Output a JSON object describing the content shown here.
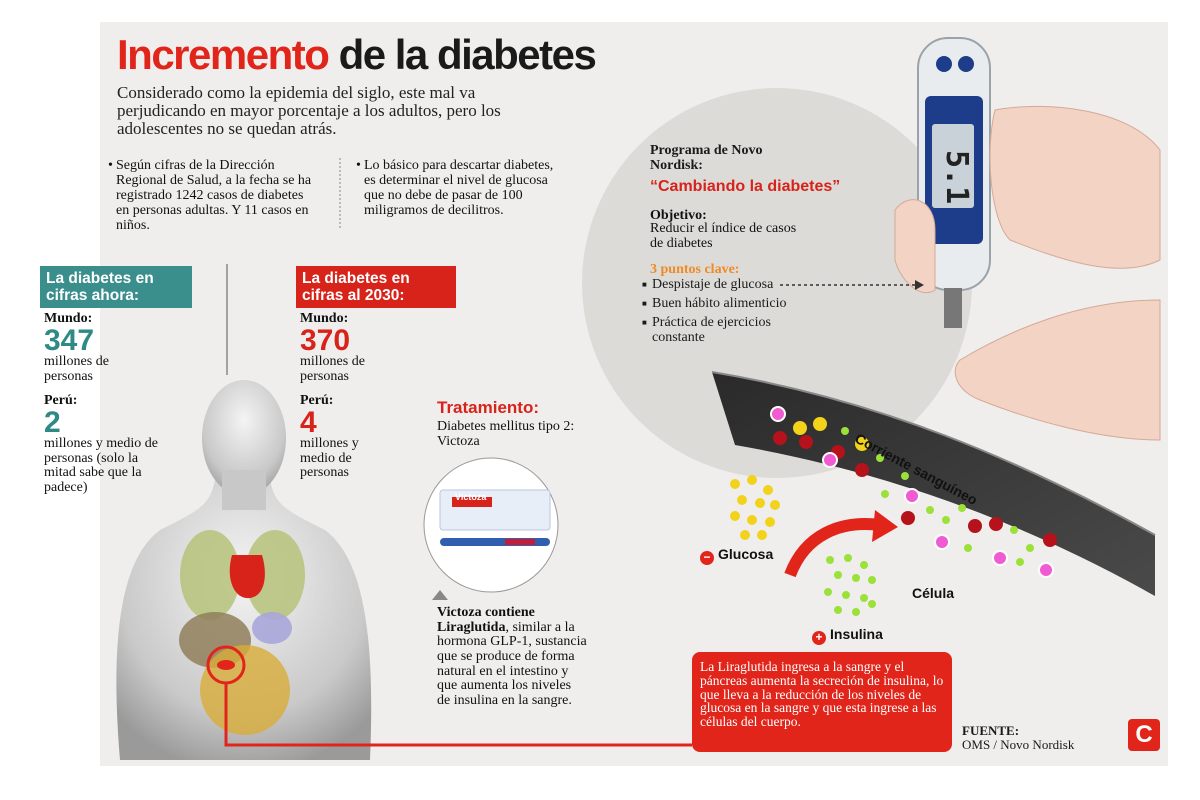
{
  "title": {
    "part1": "Incremento",
    "part2": "de la diabetes"
  },
  "subtitle": "Considerado como la epidemia del siglo, este mal va perjudicando en mayor porcentaje a los adultos, pero los adolescentes no se quedan atrás.",
  "bullets": [
    "Según cifras de la Dirección Regional de Salud, a la fecha se ha registrado 1242 casos de diabetes en personas adultas. Y 11 casos en niños.",
    "Lo básico para descartar diabetes, es determinar el nivel de glucosa que no debe de pasar de 100 miligramos de decilitros."
  ],
  "now": {
    "header": "La diabetes en cifras ahora:",
    "mundo_label": "Mundo:",
    "mundo_value": "347",
    "mundo_unit": "millones de personas",
    "peru_label": "Perú:",
    "peru_value": "2",
    "peru_unit": "millones y medio de personas (solo la mitad sabe que la padece)"
  },
  "future": {
    "header": "La diabetes en cifras al 2030:",
    "mundo_label": "Mundo:",
    "mundo_value": "370",
    "mundo_unit": "millones de personas",
    "peru_label": "Perú:",
    "peru_value": "4",
    "peru_unit": "millones y medio de personas"
  },
  "program": {
    "title": "Programa de Novo Nordisk:",
    "name": "“Cambiando la diabetes”",
    "objective_label": "Objetivo:",
    "objective_text": "Reducir el índice de casos de diabetes",
    "keypoints_label": "3 puntos clave:",
    "keypoints": [
      "Despistaje de glucosa",
      "Buen hábito alimenticio",
      "Práctica de ejercicios constante"
    ]
  },
  "meter_reading": "5.1",
  "treatment": {
    "title": "Tratamiento:",
    "text": "Diabetes mellitus tipo 2: Victoza",
    "box_label": "Victoza",
    "desc_bold": "Victoza contiene Liraglutida",
    "desc_rest": ", similar a la hormona GLP-1, sustancia que se produce de forma natural en el intestino y que aumenta los niveles de insulina en la sangre."
  },
  "diagram": {
    "stream_label": "Corriente sanguíneo",
    "glucosa_sign": "−",
    "glucosa_label": "Glucosa",
    "insulina_sign": "+",
    "insulina_label": "Insulina",
    "cell_label": "Célula"
  },
  "footnote": "La Liraglutida ingresa a la sangre y el páncreas aumenta la secreción de insulina, lo que lleva a la reducción de los niveles de glucosa en la sangre y que esta ingrese a las células del cuerpo.",
  "source": {
    "label": "FUENTE:",
    "text": "OMS / Novo Nordisk"
  },
  "logo_letter": "C",
  "colors": {
    "red": "#e1251b",
    "teal": "#3a8f8c",
    "yellow": "#f2d21b",
    "green": "#9be13a",
    "pink": "#f05ad2",
    "darkred": "#b5121b"
  }
}
